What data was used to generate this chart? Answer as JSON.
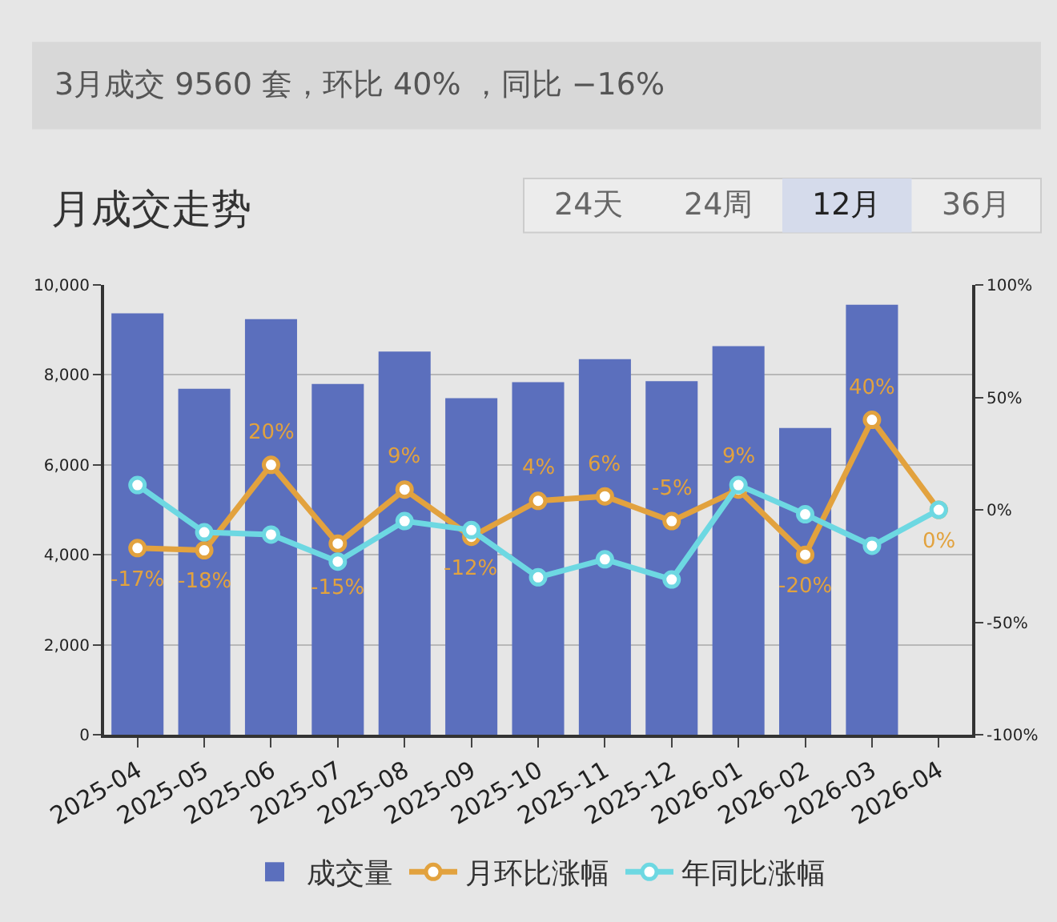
{
  "chart_data": {
    "type": "bar",
    "title": "月成交走势",
    "annotations": [
      "3月成交 9560 套，环比 40% ，同比 −16%",
      "24天",
      "24周",
      "12月",
      "36月"
    ],
    "categories": [
      "2025-04",
      "2025-05",
      "2025-06",
      "2025-07",
      "2025-08",
      "2025-09",
      "2025-10",
      "2025-11",
      "2025-12",
      "2026-01",
      "2026-02",
      "2026-03",
      "2026-04"
    ],
    "series": [
      {
        "name": "成交量",
        "color": "#5b6fbd",
        "values": [
          9370,
          7690,
          9240,
          7800,
          8520,
          7480,
          7840,
          8350,
          7860,
          8640,
          6820,
          9560,
          null
        ]
      },
      {
        "name": "月环比涨幅",
        "type": "line",
        "axis": "y2",
        "color": "#e2a23e",
        "values": [
          -17,
          -18,
          20,
          -15,
          9,
          -12,
          4,
          6,
          -5,
          9,
          -20,
          40,
          0
        ],
        "value_labels": [
          "-17%",
          "-18%",
          "20%",
          "-15%",
          "9%",
          "-12%",
          "4%",
          "6%",
          "-5%",
          "9%",
          "-20%",
          "40%",
          "0%"
        ]
      },
      {
        "name": "年同比涨幅",
        "type": "line",
        "axis": "y2",
        "color": "#6dd8e2",
        "values": [
          11,
          -10,
          -11,
          -23,
          -5,
          -9,
          -30,
          -22,
          -31,
          11,
          -2,
          -16,
          0
        ]
      }
    ],
    "ylim": [
      0,
      10000
    ],
    "yticks": [
      0,
      {
        "value": 2000,
        "label": "2,000"
      },
      {
        "value": 4000,
        "label": "4,000"
      },
      {
        "value": 6000,
        "label": "6,000"
      },
      {
        "value": 8000,
        "label": "8,000"
      },
      {
        "value": 10000,
        "label": "10,000"
      }
    ],
    "y2lim": [
      -100,
      100
    ],
    "y2ticks": [
      {
        "value": -100,
        "label": "-100%"
      },
      {
        "value": -50,
        "label": "-50%"
      },
      {
        "value": 0,
        "label": "0%"
      },
      {
        "value": 50,
        "label": "50%"
      },
      {
        "value": 100,
        "label": "100%"
      }
    ],
    "grid": "y",
    "legend": "bottom",
    "marker": "circle",
    "line_style": "solid"
  }
}
